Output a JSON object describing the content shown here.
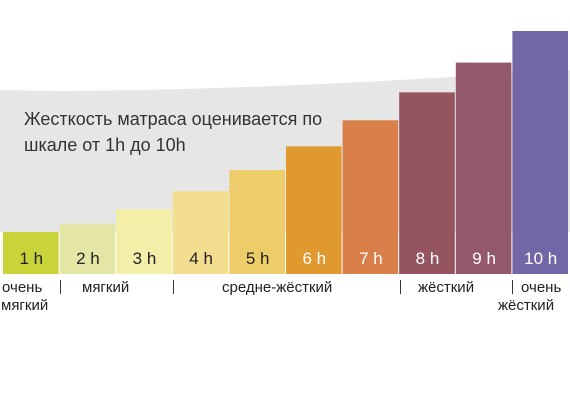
{
  "caption": {
    "line1": "Жесткость матраса оценивается по",
    "line2": "шкале от 1h до 10h"
  },
  "colors": {
    "curve_fill": "#e6e6e6",
    "label_dark": "#222222",
    "label_light": "#ffffff"
  },
  "levels": [
    {
      "label": "1 h",
      "level": 1,
      "color": "#c9d33a",
      "text_color": "#222222"
    },
    {
      "label": "2 h",
      "level": 2,
      "color": "#e3e6a4",
      "text_color": "#222222"
    },
    {
      "label": "3 h",
      "level": 3,
      "color": "#f3efa9",
      "text_color": "#222222"
    },
    {
      "label": "4 h",
      "level": 4,
      "color": "#f3dd8e",
      "text_color": "#222222"
    },
    {
      "label": "5 h",
      "level": 5,
      "color": "#edcd6a",
      "text_color": "#222222"
    },
    {
      "label": "6 h",
      "level": 6,
      "color": "#e0992e",
      "text_color": "#ffffff"
    },
    {
      "label": "7 h",
      "level": 7,
      "color": "#d9804a",
      "text_color": "#ffffff"
    },
    {
      "label": "8 h",
      "level": 8,
      "color": "#945561",
      "text_color": "#ffffff"
    },
    {
      "label": "9 h",
      "level": 9,
      "color": "#93596b",
      "text_color": "#ffffff"
    },
    {
      "label": "10 h",
      "level": 10,
      "color": "#7366a6",
      "text_color": "#ffffff"
    }
  ],
  "categories": {
    "very_soft_1": "очень",
    "very_soft_2": "мягкий",
    "soft": "мягкий",
    "medium_firm": "средне-жёсткий",
    "firm": "жёсткий",
    "very_firm_1": "очень",
    "very_firm_2": "жёсткий"
  }
}
